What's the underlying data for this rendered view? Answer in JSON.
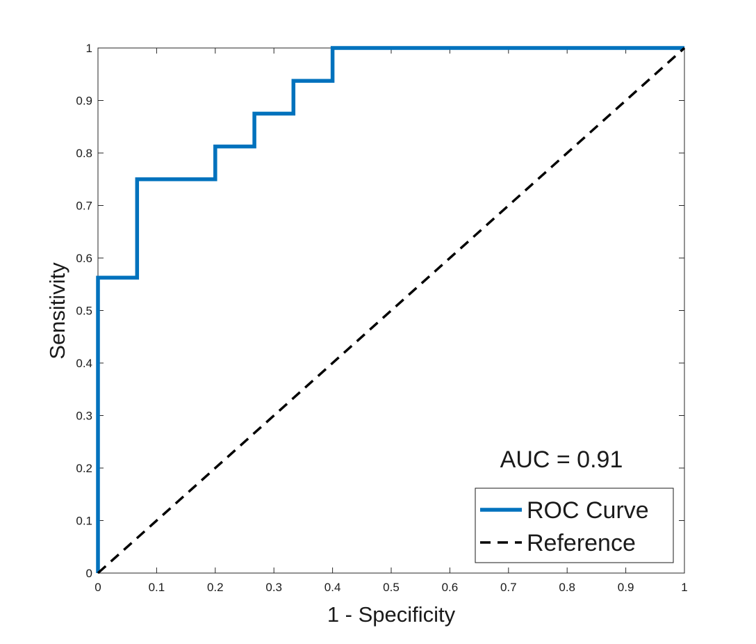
{
  "chart_data": {
    "type": "line",
    "xlabel": "1 - Specificity",
    "ylabel": "Sensitivity",
    "xlim": [
      0,
      1
    ],
    "ylim": [
      0,
      1
    ],
    "xticks": [
      0,
      0.1,
      0.2,
      0.3,
      0.4,
      0.5,
      0.6,
      0.7,
      0.8,
      0.9,
      1
    ],
    "yticks": [
      0,
      0.1,
      0.2,
      0.3,
      0.4,
      0.5,
      0.6,
      0.7,
      0.8,
      0.9,
      1
    ],
    "xtick_labels": [
      "0",
      "0.1",
      "0.2",
      "0.3",
      "0.4",
      "0.5",
      "0.6",
      "0.7",
      "0.8",
      "0.9",
      "1"
    ],
    "ytick_labels": [
      "0",
      "0.1",
      "0.2",
      "0.3",
      "0.4",
      "0.5",
      "0.6",
      "0.7",
      "0.8",
      "0.9",
      "1"
    ],
    "annotation": "AUC = 0.91",
    "legend_position": "bottom-right",
    "series": [
      {
        "name": "ROC Curve",
        "style": "solid",
        "color": "#0072BD",
        "x": [
          0,
          0,
          0.0667,
          0.0667,
          0.2,
          0.2,
          0.2667,
          0.2667,
          0.3333,
          0.3333,
          0.4,
          0.4,
          1
        ],
        "y": [
          0,
          0.5625,
          0.5625,
          0.75,
          0.75,
          0.8125,
          0.8125,
          0.875,
          0.875,
          0.9375,
          0.9375,
          1,
          1
        ]
      },
      {
        "name": "Reference",
        "style": "dashed",
        "color": "#000000",
        "x": [
          0,
          1
        ],
        "y": [
          0,
          1
        ]
      }
    ]
  }
}
